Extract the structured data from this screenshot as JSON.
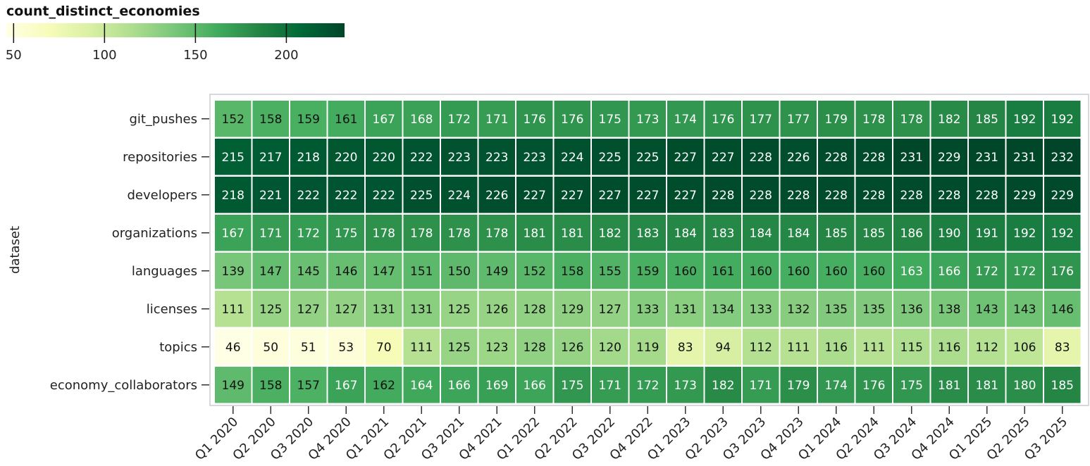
{
  "chart_data": {
    "type": "heatmap",
    "title": "",
    "xlabel": "",
    "ylabel": "dataset",
    "color_scale": {
      "title": "count_distinct_economies",
      "scheme": "yellow-green",
      "domain": [
        46,
        232
      ],
      "ticks": [
        50,
        100,
        150,
        200
      ],
      "legend_position": "top-left",
      "stops": [
        "#ffffe5",
        "#f7fcb9",
        "#d9f0a3",
        "#addd8e",
        "#78c679",
        "#41ab5d",
        "#238443",
        "#006837",
        "#004529"
      ]
    },
    "x": [
      "Q1 2020",
      "Q2 2020",
      "Q3 2020",
      "Q4 2020",
      "Q1 2021",
      "Q2 2021",
      "Q3 2021",
      "Q4 2021",
      "Q1 2022",
      "Q2 2022",
      "Q3 2022",
      "Q4 2022",
      "Q1 2023",
      "Q2 2023",
      "Q3 2023",
      "Q4 2023",
      "Q1 2024",
      "Q2 2024",
      "Q3 2024",
      "Q4 2024",
      "Q1 2025",
      "Q2 2025",
      "Q3 2025"
    ],
    "y": [
      "git_pushes",
      "repositories",
      "developers",
      "organizations",
      "languages",
      "licenses",
      "topics",
      "economy_collaborators"
    ],
    "values": [
      [
        152,
        158,
        159,
        161,
        167,
        168,
        172,
        171,
        176,
        176,
        175,
        173,
        174,
        176,
        177,
        177,
        179,
        178,
        178,
        182,
        185,
        192,
        192
      ],
      [
        215,
        217,
        218,
        220,
        220,
        222,
        223,
        223,
        223,
        224,
        225,
        225,
        227,
        227,
        228,
        226,
        228,
        228,
        231,
        229,
        231,
        231,
        232
      ],
      [
        218,
        221,
        222,
        222,
        222,
        225,
        224,
        226,
        227,
        227,
        227,
        227,
        227,
        228,
        228,
        228,
        228,
        228,
        228,
        228,
        228,
        229,
        229
      ],
      [
        167,
        171,
        172,
        175,
        178,
        178,
        178,
        178,
        181,
        181,
        182,
        183,
        184,
        183,
        184,
        184,
        185,
        185,
        186,
        190,
        191,
        192,
        192
      ],
      [
        139,
        147,
        145,
        146,
        147,
        151,
        150,
        149,
        152,
        158,
        155,
        159,
        160,
        161,
        160,
        160,
        160,
        160,
        163,
        166,
        172,
        172,
        176
      ],
      [
        111,
        125,
        127,
        127,
        131,
        131,
        125,
        126,
        128,
        129,
        127,
        133,
        131,
        134,
        133,
        132,
        135,
        135,
        136,
        138,
        143,
        143,
        146
      ],
      [
        46,
        50,
        51,
        53,
        70,
        111,
        125,
        123,
        128,
        126,
        120,
        119,
        83,
        94,
        112,
        111,
        116,
        111,
        115,
        116,
        112,
        106,
        83
      ],
      [
        149,
        158,
        157,
        167,
        162,
        164,
        166,
        169,
        166,
        175,
        171,
        172,
        173,
        182,
        171,
        179,
        174,
        176,
        175,
        181,
        181,
        180,
        185
      ]
    ],
    "data_labels": true,
    "grid": false
  }
}
